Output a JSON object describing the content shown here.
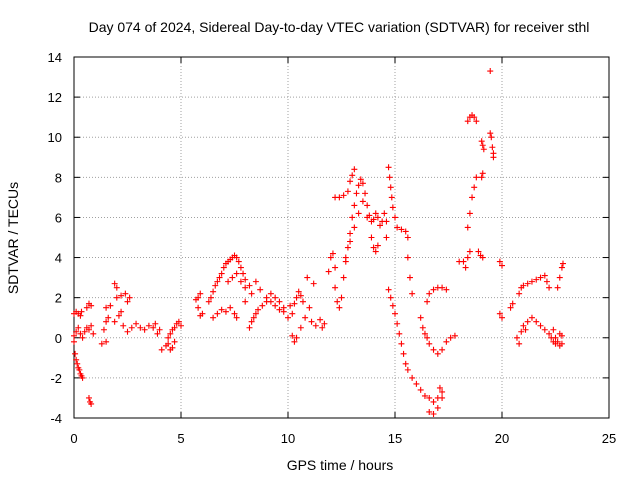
{
  "chart_data": {
    "type": "scatter",
    "title": "Day 074 of 2024, Sidereal Day-to-day VTEC variation (SDTVAR) for receiver sthl",
    "xlabel": "GPS time / hours",
    "ylabel": "SDTVAR / TECUs",
    "xlim": [
      0,
      25
    ],
    "ylim": [
      -4,
      14
    ],
    "xticks": [
      "0",
      "5",
      "10",
      "15",
      "20",
      "25"
    ],
    "yticks": [
      "-4",
      "-2",
      "0",
      "2",
      "4",
      "6",
      "8",
      "10",
      "12",
      "14"
    ],
    "grid": true,
    "marker": "plus",
    "marker_color": "#ff0000",
    "series": [
      {
        "name": "SDTVAR",
        "points": [
          [
            0.0,
            1.2
          ],
          [
            0.1,
            1.3
          ],
          [
            0.2,
            1.2
          ],
          [
            0.3,
            1.1
          ],
          [
            0.35,
            1.3
          ],
          [
            0.0,
            -0.2
          ],
          [
            0.05,
            -0.8
          ],
          [
            0.1,
            -1.1
          ],
          [
            0.15,
            -1.3
          ],
          [
            0.2,
            -1.5
          ],
          [
            0.25,
            -1.6
          ],
          [
            0.3,
            -1.8
          ],
          [
            0.35,
            -1.9
          ],
          [
            0.4,
            -2.0
          ],
          [
            0.7,
            -3.0
          ],
          [
            0.75,
            -3.2
          ],
          [
            0.8,
            -3.3
          ],
          [
            0.0,
            0.1
          ],
          [
            0.1,
            0.3
          ],
          [
            0.2,
            0.5
          ],
          [
            0.3,
            0.2
          ],
          [
            0.4,
            0.0
          ],
          [
            0.5,
            0.3
          ],
          [
            0.6,
            0.5
          ],
          [
            0.7,
            0.4
          ],
          [
            0.8,
            0.6
          ],
          [
            0.9,
            0.2
          ],
          [
            0.6,
            1.5
          ],
          [
            0.7,
            1.7
          ],
          [
            0.8,
            1.6
          ],
          [
            1.3,
            -0.3
          ],
          [
            1.5,
            -0.2
          ],
          [
            1.4,
            0.4
          ],
          [
            1.5,
            0.8
          ],
          [
            1.6,
            1.0
          ],
          [
            1.5,
            1.5
          ],
          [
            1.7,
            1.6
          ],
          [
            1.9,
            2.7
          ],
          [
            2.0,
            2.5
          ],
          [
            2.0,
            2.0
          ],
          [
            2.2,
            2.1
          ],
          [
            2.4,
            2.2
          ],
          [
            2.6,
            2.0
          ],
          [
            2.5,
            1.8
          ],
          [
            1.9,
            0.8
          ],
          [
            2.1,
            1.1
          ],
          [
            2.2,
            1.3
          ],
          [
            2.3,
            0.6
          ],
          [
            2.5,
            0.3
          ],
          [
            2.7,
            0.5
          ],
          [
            2.9,
            0.7
          ],
          [
            3.1,
            0.5
          ],
          [
            3.3,
            0.4
          ],
          [
            3.5,
            0.6
          ],
          [
            3.7,
            0.5
          ],
          [
            3.8,
            0.7
          ],
          [
            3.9,
            0.2
          ],
          [
            4.0,
            0.4
          ],
          [
            4.1,
            -0.6
          ],
          [
            4.3,
            -0.4
          ],
          [
            4.4,
            -0.3
          ],
          [
            4.5,
            -0.6
          ],
          [
            4.6,
            -0.5
          ],
          [
            4.7,
            -0.2
          ],
          [
            4.4,
            0.0
          ],
          [
            4.5,
            0.2
          ],
          [
            4.6,
            0.4
          ],
          [
            4.7,
            0.5
          ],
          [
            4.8,
            0.7
          ],
          [
            4.9,
            0.8
          ],
          [
            5.0,
            0.6
          ],
          [
            5.7,
            1.9
          ],
          [
            5.8,
            2.0
          ],
          [
            5.9,
            2.2
          ],
          [
            5.8,
            1.5
          ],
          [
            5.9,
            1.1
          ],
          [
            6.0,
            1.2
          ],
          [
            6.3,
            1.8
          ],
          [
            6.4,
            2.0
          ],
          [
            6.5,
            2.3
          ],
          [
            6.6,
            2.6
          ],
          [
            6.7,
            2.8
          ],
          [
            6.8,
            3.0
          ],
          [
            6.9,
            3.2
          ],
          [
            7.0,
            3.5
          ],
          [
            7.1,
            3.7
          ],
          [
            7.2,
            3.8
          ],
          [
            7.3,
            3.9
          ],
          [
            7.4,
            4.0
          ],
          [
            7.5,
            4.1
          ],
          [
            7.6,
            4.0
          ],
          [
            7.7,
            3.8
          ],
          [
            7.8,
            3.5
          ],
          [
            7.9,
            3.2
          ],
          [
            8.0,
            2.9
          ],
          [
            6.5,
            1.0
          ],
          [
            6.7,
            1.2
          ],
          [
            6.9,
            1.4
          ],
          [
            7.1,
            1.3
          ],
          [
            7.3,
            1.5
          ],
          [
            7.5,
            1.2
          ],
          [
            7.6,
            1.0
          ],
          [
            7.2,
            2.8
          ],
          [
            7.4,
            3.0
          ],
          [
            7.6,
            3.2
          ],
          [
            7.8,
            2.8
          ],
          [
            8.0,
            2.5
          ],
          [
            8.2,
            2.6
          ],
          [
            8.0,
            1.8
          ],
          [
            8.3,
            2.2
          ],
          [
            8.5,
            2.8
          ],
          [
            8.7,
            2.4
          ],
          [
            8.2,
            0.5
          ],
          [
            8.3,
            0.8
          ],
          [
            8.4,
            1.0
          ],
          [
            8.5,
            1.2
          ],
          [
            8.6,
            1.4
          ],
          [
            8.8,
            1.6
          ],
          [
            9.0,
            1.8
          ],
          [
            9.2,
            1.8
          ],
          [
            9.4,
            1.6
          ],
          [
            9.6,
            1.4
          ],
          [
            9.8,
            1.3
          ],
          [
            10.0,
            1.0
          ],
          [
            9.0,
            2.0
          ],
          [
            9.2,
            2.2
          ],
          [
            9.4,
            2.0
          ],
          [
            9.6,
            1.8
          ],
          [
            9.8,
            1.5
          ],
          [
            10.1,
            1.6
          ],
          [
            10.2,
            1.2
          ],
          [
            10.3,
            1.7
          ],
          [
            10.4,
            2.0
          ],
          [
            10.5,
            2.3
          ],
          [
            10.6,
            2.1
          ],
          [
            10.7,
            1.8
          ],
          [
            10.2,
            0.1
          ],
          [
            10.3,
            -0.2
          ],
          [
            10.4,
            0.0
          ],
          [
            10.6,
            0.5
          ],
          [
            10.8,
            1.0
          ],
          [
            11.0,
            1.5
          ],
          [
            10.9,
            3.0
          ],
          [
            11.2,
            2.7
          ],
          [
            11.1,
            0.8
          ],
          [
            11.3,
            0.6
          ],
          [
            11.5,
            0.9
          ],
          [
            11.6,
            0.5
          ],
          [
            11.7,
            0.7
          ],
          [
            11.9,
            3.3
          ],
          [
            12.0,
            4.0
          ],
          [
            12.1,
            4.2
          ],
          [
            12.2,
            3.5
          ],
          [
            12.2,
            2.5
          ],
          [
            12.3,
            1.8
          ],
          [
            12.4,
            1.5
          ],
          [
            12.5,
            2.0
          ],
          [
            12.6,
            3.0
          ],
          [
            12.7,
            3.8
          ],
          [
            12.8,
            4.5
          ],
          [
            12.9,
            5.2
          ],
          [
            13.0,
            6.0
          ],
          [
            13.1,
            6.6
          ],
          [
            13.2,
            7.2
          ],
          [
            13.3,
            7.6
          ],
          [
            13.4,
            7.9
          ],
          [
            13.5,
            7.7
          ],
          [
            13.6,
            7.2
          ],
          [
            13.7,
            6.6
          ],
          [
            13.8,
            6.1
          ],
          [
            13.9,
            5.8
          ],
          [
            14.0,
            5.9
          ],
          [
            14.1,
            6.2
          ],
          [
            12.2,
            7.0
          ],
          [
            12.4,
            7.0
          ],
          [
            12.6,
            7.1
          ],
          [
            12.8,
            7.3
          ],
          [
            12.9,
            7.8
          ],
          [
            13.0,
            8.1
          ],
          [
            13.1,
            8.4
          ],
          [
            12.7,
            4.0
          ],
          [
            12.9,
            4.8
          ],
          [
            13.1,
            5.5
          ],
          [
            13.3,
            6.2
          ],
          [
            13.5,
            6.8
          ],
          [
            13.7,
            6.0
          ],
          [
            13.9,
            5.0
          ],
          [
            14.0,
            4.5
          ],
          [
            14.1,
            4.3
          ],
          [
            14.2,
            4.6
          ],
          [
            14.2,
            6.0
          ],
          [
            14.3,
            5.6
          ],
          [
            14.4,
            5.8
          ],
          [
            14.5,
            6.2
          ],
          [
            14.6,
            5.8
          ],
          [
            14.6,
            5.0
          ],
          [
            14.7,
            8.5
          ],
          [
            14.75,
            8.0
          ],
          [
            14.8,
            7.5
          ],
          [
            14.85,
            7.0
          ],
          [
            14.9,
            6.5
          ],
          [
            15.0,
            6.0
          ],
          [
            15.1,
            5.5
          ],
          [
            15.3,
            5.4
          ],
          [
            15.5,
            5.3
          ],
          [
            15.6,
            5.0
          ],
          [
            15.6,
            4.0
          ],
          [
            15.7,
            3.0
          ],
          [
            15.8,
            2.2
          ],
          [
            14.7,
            2.4
          ],
          [
            14.8,
            2.0
          ],
          [
            14.9,
            1.6
          ],
          [
            15.0,
            1.2
          ],
          [
            15.1,
            0.7
          ],
          [
            15.2,
            0.2
          ],
          [
            15.3,
            -0.3
          ],
          [
            15.4,
            -0.8
          ],
          [
            15.5,
            -1.3
          ],
          [
            15.6,
            -1.6
          ],
          [
            15.8,
            -2.0
          ],
          [
            16.0,
            -2.3
          ],
          [
            16.2,
            -2.6
          ],
          [
            16.4,
            -2.9
          ],
          [
            16.6,
            -3.0
          ],
          [
            16.8,
            -3.2
          ],
          [
            17.0,
            -3.0
          ],
          [
            17.2,
            -2.7
          ],
          [
            16.6,
            -3.7
          ],
          [
            16.8,
            -3.8
          ],
          [
            17.0,
            -3.5
          ],
          [
            17.2,
            -3.0
          ],
          [
            17.1,
            -2.5
          ],
          [
            16.3,
            0.5
          ],
          [
            16.2,
            1.0
          ],
          [
            16.4,
            0.2
          ],
          [
            16.5,
            0.0
          ],
          [
            16.6,
            -0.3
          ],
          [
            16.8,
            -0.6
          ],
          [
            17.0,
            -0.8
          ],
          [
            17.2,
            -0.6
          ],
          [
            17.4,
            -0.2
          ],
          [
            17.6,
            0.0
          ],
          [
            17.8,
            0.1
          ],
          [
            16.5,
            1.8
          ],
          [
            16.6,
            2.2
          ],
          [
            16.8,
            2.4
          ],
          [
            17.0,
            2.5
          ],
          [
            17.2,
            2.5
          ],
          [
            17.4,
            2.4
          ],
          [
            18.0,
            3.8
          ],
          [
            18.2,
            3.8
          ],
          [
            18.3,
            3.5
          ],
          [
            18.4,
            4.0
          ],
          [
            18.5,
            4.3
          ],
          [
            18.4,
            5.5
          ],
          [
            18.5,
            6.2
          ],
          [
            18.6,
            7.0
          ],
          [
            18.7,
            7.5
          ],
          [
            18.8,
            8.0
          ],
          [
            18.4,
            10.8
          ],
          [
            18.5,
            11.0
          ],
          [
            18.6,
            11.1
          ],
          [
            18.7,
            11.0
          ],
          [
            18.8,
            10.8
          ],
          [
            18.9,
            4.3
          ],
          [
            19.0,
            4.1
          ],
          [
            19.1,
            4.0
          ],
          [
            19.05,
            8.0
          ],
          [
            19.1,
            8.2
          ],
          [
            19.05,
            9.8
          ],
          [
            19.1,
            9.6
          ],
          [
            19.15,
            9.4
          ],
          [
            19.45,
            10.2
          ],
          [
            19.5,
            10.0
          ],
          [
            19.55,
            9.5
          ],
          [
            19.6,
            9.2
          ],
          [
            19.6,
            9.0
          ],
          [
            19.45,
            13.3
          ],
          [
            19.9,
            3.8
          ],
          [
            20.0,
            3.6
          ],
          [
            19.9,
            1.2
          ],
          [
            20.0,
            1.0
          ],
          [
            20.4,
            1.5
          ],
          [
            20.5,
            1.7
          ],
          [
            20.7,
            0.0
          ],
          [
            20.8,
            -0.3
          ],
          [
            20.9,
            0.3
          ],
          [
            21.0,
            0.6
          ],
          [
            21.1,
            0.4
          ],
          [
            21.2,
            0.8
          ],
          [
            21.4,
            1.0
          ],
          [
            21.6,
            0.8
          ],
          [
            21.8,
            0.6
          ],
          [
            22.0,
            0.4
          ],
          [
            22.2,
            0.2
          ],
          [
            22.3,
            0.0
          ],
          [
            22.4,
            -0.2
          ],
          [
            22.5,
            -0.3
          ],
          [
            20.8,
            2.2
          ],
          [
            20.9,
            2.5
          ],
          [
            21.0,
            2.6
          ],
          [
            21.2,
            2.7
          ],
          [
            21.4,
            2.8
          ],
          [
            21.6,
            2.9
          ],
          [
            21.8,
            3.0
          ],
          [
            22.0,
            3.1
          ],
          [
            22.1,
            2.8
          ],
          [
            22.2,
            2.5
          ],
          [
            22.4,
            0.4
          ],
          [
            22.5,
            0.0
          ],
          [
            22.6,
            -0.2
          ],
          [
            22.7,
            -0.4
          ],
          [
            22.8,
            -0.3
          ],
          [
            22.6,
            2.5
          ],
          [
            22.7,
            3.0
          ],
          [
            22.8,
            3.5
          ],
          [
            22.85,
            3.7
          ],
          [
            22.7,
            0.2
          ],
          [
            22.8,
            0.1
          ]
        ]
      }
    ]
  }
}
